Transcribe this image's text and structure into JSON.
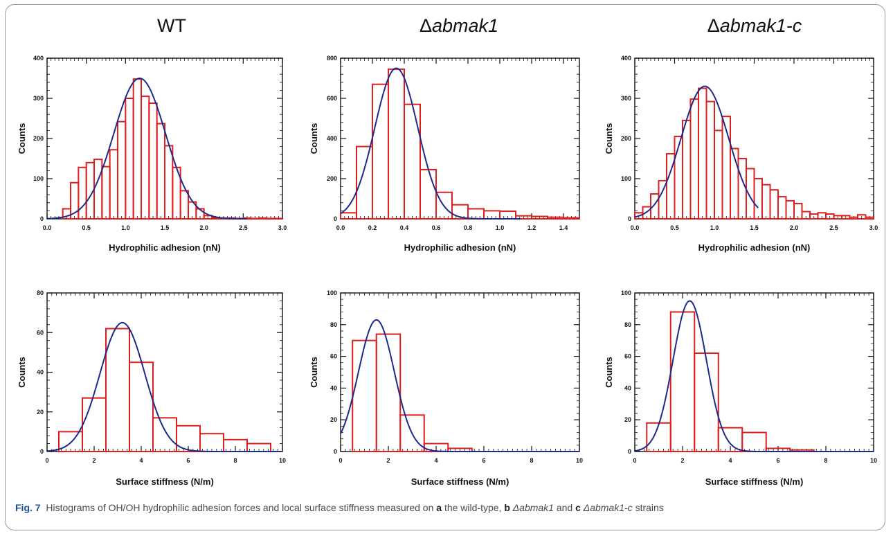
{
  "figure": {
    "titles": [
      "WT",
      "Δ",
      "abmak1",
      "Δ",
      "abmak1-c"
    ],
    "caption": {
      "fig_label": "Fig. 7",
      "text_1": "Histograms of OH/OH hydrophilic adhesion forces and local surface stiffness measured on",
      "a": "a",
      "text_a": "the wild-type,",
      "b": "b",
      "text_b": "Δabmak1",
      "and": "and",
      "c": "c",
      "text_c": "Δabmak1-c",
      "text_end": "strains"
    }
  },
  "colors": {
    "bars": "#dd1f1f",
    "fit": "#1b2a8c",
    "axis": "#111111"
  },
  "chart_data": [
    {
      "type": "bar",
      "panel": "WT",
      "title": "WT",
      "xlabel": "Hydrophilic adhesion (nN)",
      "ylabel": "Counts",
      "xlim": [
        0,
        3.0
      ],
      "ylim": [
        0,
        400
      ],
      "xticks": [
        "0.0",
        "0.5",
        "1.0",
        "1.5",
        "2.0",
        "2.5",
        "3.0"
      ],
      "yticks": [
        "0",
        "100",
        "200",
        "300",
        "400"
      ],
      "bin_width": 0.1,
      "bin_starts": [
        0.2,
        0.3,
        0.4,
        0.5,
        0.6,
        0.7,
        0.8,
        0.9,
        1.0,
        1.1,
        1.2,
        1.3,
        1.4,
        1.5,
        1.6,
        1.7,
        1.8,
        1.9,
        2.0,
        2.1,
        2.2,
        2.3,
        2.4,
        2.5,
        2.6,
        2.7,
        2.8,
        2.9
      ],
      "values": [
        25,
        90,
        128,
        140,
        148,
        130,
        172,
        242,
        300,
        348,
        305,
        288,
        237,
        182,
        128,
        70,
        42,
        25,
        8,
        3,
        2,
        2,
        1,
        2,
        1,
        2,
        1,
        1
      ],
      "fit": {
        "type": "gaussian",
        "amplitude": 350,
        "mean": 1.18,
        "sigma": 0.33
      }
    },
    {
      "type": "bar",
      "panel": "abmak1",
      "title": "Δabmak1",
      "xlabel": "Hydrophilic adhesion (nN)",
      "ylabel": "Counts",
      "xlim": [
        0,
        1.5
      ],
      "ylim": [
        0,
        800
      ],
      "xticks": [
        "0.0",
        "0.2",
        "0.4",
        "0.6",
        "0.8",
        "1.0",
        "1.2",
        "1.4"
      ],
      "yticks": [
        "0",
        "200",
        "400",
        "600",
        "800"
      ],
      "bin_width": 0.1,
      "bin_starts": [
        0.0,
        0.1,
        0.2,
        0.3,
        0.4,
        0.5,
        0.6,
        0.7,
        0.8,
        0.9,
        1.0,
        1.1,
        1.2,
        1.3,
        1.4
      ],
      "values": [
        30,
        360,
        670,
        745,
        570,
        245,
        132,
        70,
        50,
        40,
        38,
        15,
        12,
        8,
        5
      ],
      "fit": {
        "type": "gaussian",
        "amplitude": 750,
        "mean": 0.35,
        "sigma": 0.135
      }
    },
    {
      "type": "bar",
      "panel": "abmak1-c",
      "title": "Δabmak1-c",
      "xlabel": "Hydrophilic adhesion (nN)",
      "ylabel": "Counts",
      "xlim": [
        0,
        3.0
      ],
      "ylim": [
        0,
        400
      ],
      "xticks": [
        "0.0",
        "0.5",
        "1.0",
        "1.5",
        "2.0",
        "2.5",
        "3.0"
      ],
      "yticks": [
        "0",
        "100",
        "200",
        "300",
        "400"
      ],
      "bin_width": 0.1,
      "bin_starts": [
        0.0,
        0.1,
        0.2,
        0.3,
        0.4,
        0.5,
        0.6,
        0.7,
        0.8,
        0.9,
        1.0,
        1.1,
        1.2,
        1.3,
        1.4,
        1.5,
        1.6,
        1.7,
        1.8,
        1.9,
        2.0,
        2.1,
        2.2,
        2.3,
        2.4,
        2.5,
        2.6,
        2.7,
        2.8,
        2.9
      ],
      "values": [
        15,
        30,
        62,
        95,
        162,
        205,
        245,
        298,
        325,
        292,
        220,
        255,
        175,
        150,
        125,
        100,
        85,
        72,
        55,
        45,
        38,
        18,
        12,
        15,
        12,
        8,
        8,
        4,
        10,
        4
      ],
      "fit": {
        "type": "gaussian",
        "amplitude": 330,
        "mean": 0.88,
        "sigma": 0.3
      }
    },
    {
      "type": "bar",
      "panel": "WT",
      "title": "",
      "xlabel": "Surface stiffness (N/m)",
      "ylabel": "Counts",
      "xlim": [
        0,
        10
      ],
      "ylim": [
        0,
        80
      ],
      "xticks": [
        "0",
        "2",
        "4",
        "6",
        "8",
        "10"
      ],
      "yticks": [
        "0",
        "20",
        "40",
        "60",
        "80"
      ],
      "bin_width": 1,
      "bin_starts": [
        0.5,
        1.5,
        2.5,
        3.5,
        4.5,
        5.5,
        6.5,
        7.5,
        8.5
      ],
      "values": [
        10,
        27,
        62,
        45,
        17,
        13,
        9,
        6,
        4
      ],
      "fit": {
        "type": "gaussian",
        "amplitude": 65,
        "mean": 3.2,
        "sigma": 0.95
      }
    },
    {
      "type": "bar",
      "panel": "abmak1",
      "title": "",
      "xlabel": "Surface stiffness (N/m)",
      "ylabel": "Counts",
      "xlim": [
        0,
        10
      ],
      "ylim": [
        0,
        100
      ],
      "xticks": [
        "0",
        "2",
        "4",
        "6",
        "8",
        "10"
      ],
      "yticks": [
        "0",
        "20",
        "40",
        "60",
        "80",
        "100"
      ],
      "bin_width": 1,
      "bin_starts": [
        0.5,
        1.5,
        2.5,
        3.5,
        4.5
      ],
      "values": [
        70,
        74,
        23,
        5,
        2
      ],
      "fit": {
        "type": "gaussian",
        "amplitude": 83,
        "mean": 1.5,
        "sigma": 0.75
      }
    },
    {
      "type": "bar",
      "panel": "abmak1-c",
      "title": "",
      "xlabel": "Surface stiffness (N/m)",
      "ylabel": "Counts",
      "xlim": [
        0,
        10
      ],
      "ylim": [
        0,
        100
      ],
      "xticks": [
        "0",
        "2",
        "4",
        "6",
        "8",
        "10"
      ],
      "yticks": [
        "0",
        "20",
        "40",
        "60",
        "80",
        "100"
      ],
      "bin_width": 1,
      "bin_starts": [
        0.5,
        1.5,
        2.5,
        3.5,
        4.5,
        5.5,
        6.5
      ],
      "values": [
        18,
        88,
        62,
        15,
        12,
        2,
        1
      ],
      "fit": {
        "type": "gaussian",
        "amplitude": 95,
        "mean": 2.3,
        "sigma": 0.7
      }
    }
  ]
}
